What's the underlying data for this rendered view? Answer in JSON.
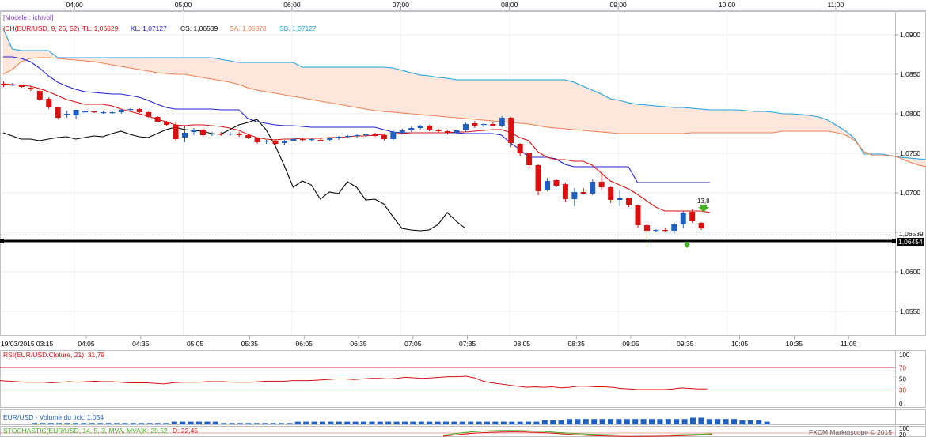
{
  "header_times": [
    "04:00",
    "05:00",
    "06:00",
    "07:00",
    "08:00",
    "09:00",
    "10:00",
    "11:00"
  ],
  "price_panel": {
    "model_label": "[Modele : ichivol]",
    "ich_label": "ICH(EUR/USD, 9, 26, 52) -",
    "tl_label": "TL: 1,06629",
    "kl_label": "KL: 1,07127",
    "cs_label": "CS: 1,06539",
    "sa_label": "SA: 1,06878",
    "sb_label": "SB: 1,07127",
    "price_ticks": [
      "1,0900",
      "1,0850",
      "1,0800",
      "1,0750",
      "1,0700",
      "1,0650",
      "1,0600",
      "1,0550"
    ],
    "current_price_label": "1,06539",
    "line_price_label": "1,06454",
    "fractal_label": "13,8"
  },
  "time_axis": {
    "date_label": "19/03/2015 03:15",
    "ticks": [
      "04:05",
      "04:35",
      "05:05",
      "05:35",
      "06:05",
      "06:35",
      "07:05",
      "07:35",
      "08:05",
      "08:35",
      "09:05",
      "09:35",
      "10:05",
      "10:35",
      "11:05"
    ]
  },
  "rsi_panel": {
    "label": "RSI(EUR/USD.Cloture, 21): 31,79",
    "ticks": [
      "100",
      "70",
      "50",
      "30",
      "0"
    ]
  },
  "volume_panel": {
    "label": "EUR/USD - Volume du tick: 1,054"
  },
  "stoch_panel": {
    "label": "STOCHASTIC(EUR/USD, 14, 5, 3, MVA, MVA) -",
    "k_label": "K: 29,52",
    "d_label": "D: 22,45",
    "ticks": [
      "100",
      "20"
    ]
  },
  "footer": {
    "brand": "FXCM Marketscope © 2015"
  },
  "colors": {
    "bull": "#1f5fbf",
    "bear": "#d81010",
    "tenkan": "#d81010",
    "kijun": "#2020d0",
    "senkou_a": "#f08050",
    "senkou_b": "#20a0e0",
    "chikou": "#000000",
    "cloud": "#fde6dc"
  },
  "chart_data": {
    "type": "candlestick",
    "symbol": "EUR/USD",
    "ylim": [
      1.052,
      1.093
    ],
    "candles": [
      {
        "t": "03:25",
        "o": 1.0838,
        "h": 1.0841,
        "l": 1.0834,
        "c": 1.0836
      },
      {
        "t": "03:30",
        "o": 1.0837,
        "h": 1.0839,
        "l": 1.0835,
        "c": 1.0837
      },
      {
        "t": "03:35",
        "o": 1.0836,
        "h": 1.0837,
        "l": 1.0833,
        "c": 1.0834
      },
      {
        "t": "03:40",
        "o": 1.0833,
        "h": 1.0835,
        "l": 1.0829,
        "c": 1.0831
      },
      {
        "t": "03:45",
        "o": 1.0829,
        "h": 1.0831,
        "l": 1.0816,
        "c": 1.0818
      },
      {
        "t": "03:50",
        "o": 1.0819,
        "h": 1.0821,
        "l": 1.0806,
        "c": 1.0808
      },
      {
        "t": "03:55",
        "o": 1.0808,
        "h": 1.0809,
        "l": 1.0793,
        "c": 1.0795
      },
      {
        "t": "04:00",
        "o": 1.0799,
        "h": 1.0804,
        "l": 1.0795,
        "c": 1.08
      },
      {
        "t": "04:05",
        "o": 1.0798,
        "h": 1.0804,
        "l": 1.0793,
        "c": 1.0805
      },
      {
        "t": "04:10",
        "o": 1.0802,
        "h": 1.0805,
        "l": 1.08,
        "c": 1.0803
      },
      {
        "t": "04:15",
        "o": 1.0803,
        "h": 1.0804,
        "l": 1.0801,
        "c": 1.0802
      },
      {
        "t": "04:20",
        "o": 1.0802,
        "h": 1.0803,
        "l": 1.08,
        "c": 1.0802
      },
      {
        "t": "04:25",
        "o": 1.0801,
        "h": 1.0804,
        "l": 1.08,
        "c": 1.0802
      },
      {
        "t": "04:30",
        "o": 1.0802,
        "h": 1.0806,
        "l": 1.08,
        "c": 1.0805
      },
      {
        "t": "04:35",
        "o": 1.0806,
        "h": 1.0807,
        "l": 1.0804,
        "c": 1.0806
      },
      {
        "t": "04:40",
        "o": 1.0806,
        "h": 1.0807,
        "l": 1.0801,
        "c": 1.0802
      },
      {
        "t": "04:45",
        "o": 1.0802,
        "h": 1.0803,
        "l": 1.0795,
        "c": 1.0796
      },
      {
        "t": "04:50",
        "o": 1.0796,
        "h": 1.0797,
        "l": 1.0789,
        "c": 1.079
      },
      {
        "t": "04:55",
        "o": 1.079,
        "h": 1.0791,
        "l": 1.0785,
        "c": 1.0786
      },
      {
        "t": "05:00",
        "o": 1.0786,
        "h": 1.079,
        "l": 1.0766,
        "c": 1.0768
      },
      {
        "t": "05:05",
        "o": 1.077,
        "h": 1.0784,
        "l": 1.0764,
        "c": 1.0776
      },
      {
        "t": "05:10",
        "o": 1.0777,
        "h": 1.0782,
        "l": 1.0773,
        "c": 1.078
      },
      {
        "t": "05:15",
        "o": 1.078,
        "h": 1.0782,
        "l": 1.0771,
        "c": 1.0773
      },
      {
        "t": "05:20",
        "o": 1.0774,
        "h": 1.0777,
        "l": 1.0772,
        "c": 1.0775
      },
      {
        "t": "05:25",
        "o": 1.0775,
        "h": 1.0777,
        "l": 1.0772,
        "c": 1.0774
      },
      {
        "t": "05:30",
        "o": 1.0774,
        "h": 1.0777,
        "l": 1.0772,
        "c": 1.0775
      },
      {
        "t": "05:35",
        "o": 1.0775,
        "h": 1.0777,
        "l": 1.0771,
        "c": 1.0773
      },
      {
        "t": "05:40",
        "o": 1.0773,
        "h": 1.0775,
        "l": 1.0768,
        "c": 1.0769
      },
      {
        "t": "05:45",
        "o": 1.0769,
        "h": 1.077,
        "l": 1.0762,
        "c": 1.0764
      },
      {
        "t": "05:50",
        "o": 1.0765,
        "h": 1.0767,
        "l": 1.0762,
        "c": 1.0766
      },
      {
        "t": "05:55",
        "o": 1.0766,
        "h": 1.0768,
        "l": 1.0761,
        "c": 1.0762
      },
      {
        "t": "06:00",
        "o": 1.0763,
        "h": 1.0767,
        "l": 1.0761,
        "c": 1.0766
      },
      {
        "t": "06:05",
        "o": 1.0766,
        "h": 1.0769,
        "l": 1.0765,
        "c": 1.0768
      },
      {
        "t": "06:10",
        "o": 1.0768,
        "h": 1.077,
        "l": 1.0765,
        "c": 1.0767
      },
      {
        "t": "06:15",
        "o": 1.0767,
        "h": 1.077,
        "l": 1.0765,
        "c": 1.0768
      },
      {
        "t": "06:20",
        "o": 1.0767,
        "h": 1.077,
        "l": 1.0765,
        "c": 1.0766
      },
      {
        "t": "06:25",
        "o": 1.0767,
        "h": 1.077,
        "l": 1.0765,
        "c": 1.0769
      },
      {
        "t": "06:30",
        "o": 1.0769,
        "h": 1.0772,
        "l": 1.0767,
        "c": 1.0771
      },
      {
        "t": "06:35",
        "o": 1.0771,
        "h": 1.0773,
        "l": 1.0769,
        "c": 1.0772
      },
      {
        "t": "06:40",
        "o": 1.0772,
        "h": 1.0774,
        "l": 1.077,
        "c": 1.0773
      },
      {
        "t": "06:45",
        "o": 1.0773,
        "h": 1.0775,
        "l": 1.0771,
        "c": 1.0774
      },
      {
        "t": "06:50",
        "o": 1.0774,
        "h": 1.0776,
        "l": 1.0771,
        "c": 1.0772
      },
      {
        "t": "06:55",
        "o": 1.0773,
        "h": 1.0775,
        "l": 1.0766,
        "c": 1.0768
      },
      {
        "t": "07:00",
        "o": 1.0768,
        "h": 1.0779,
        "l": 1.0766,
        "c": 1.0777
      },
      {
        "t": "07:05",
        "o": 1.0776,
        "h": 1.0781,
        "l": 1.0774,
        "c": 1.0779
      },
      {
        "t": "07:10",
        "o": 1.0779,
        "h": 1.0784,
        "l": 1.0777,
        "c": 1.0782
      },
      {
        "t": "07:15",
        "o": 1.0782,
        "h": 1.0786,
        "l": 1.078,
        "c": 1.0785
      },
      {
        "t": "07:20",
        "o": 1.0785,
        "h": 1.0786,
        "l": 1.0778,
        "c": 1.078
      },
      {
        "t": "07:25",
        "o": 1.078,
        "h": 1.0781,
        "l": 1.0776,
        "c": 1.0778
      },
      {
        "t": "07:30",
        "o": 1.0778,
        "h": 1.0779,
        "l": 1.0774,
        "c": 1.0776
      },
      {
        "t": "07:35",
        "o": 1.0776,
        "h": 1.078,
        "l": 1.0775,
        "c": 1.0779
      },
      {
        "t": "07:40",
        "o": 1.0779,
        "h": 1.0789,
        "l": 1.0777,
        "c": 1.0787
      },
      {
        "t": "07:45",
        "o": 1.0788,
        "h": 1.0791,
        "l": 1.0782,
        "c": 1.0785
      },
      {
        "t": "07:50",
        "o": 1.0786,
        "h": 1.0788,
        "l": 1.0783,
        "c": 1.0787
      },
      {
        "t": "07:55",
        "o": 1.0787,
        "h": 1.0789,
        "l": 1.0784,
        "c": 1.0785
      },
      {
        "t": "08:00",
        "o": 1.0785,
        "h": 1.0797,
        "l": 1.0783,
        "c": 1.0795
      },
      {
        "t": "08:05",
        "o": 1.0795,
        "h": 1.0796,
        "l": 1.0758,
        "c": 1.0763
      },
      {
        "t": "08:10",
        "o": 1.0762,
        "h": 1.0763,
        "l": 1.0746,
        "c": 1.075
      },
      {
        "t": "08:15",
        "o": 1.075,
        "h": 1.0751,
        "l": 1.0732,
        "c": 1.0735
      },
      {
        "t": "08:20",
        "o": 1.0735,
        "h": 1.0736,
        "l": 1.0697,
        "c": 1.0702
      },
      {
        "t": "08:25",
        "o": 1.0704,
        "h": 1.0719,
        "l": 1.0702,
        "c": 1.0715
      },
      {
        "t": "08:30",
        "o": 1.0716,
        "h": 1.0717,
        "l": 1.0707,
        "c": 1.0709
      },
      {
        "t": "08:35",
        "o": 1.0711,
        "h": 1.0713,
        "l": 1.0688,
        "c": 1.0692
      },
      {
        "t": "08:40",
        "o": 1.0692,
        "h": 1.0706,
        "l": 1.0683,
        "c": 1.0701
      },
      {
        "t": "08:45",
        "o": 1.0701,
        "h": 1.0706,
        "l": 1.0698,
        "c": 1.0699
      },
      {
        "t": "08:50",
        "o": 1.0699,
        "h": 1.0717,
        "l": 1.0697,
        "c": 1.0714
      },
      {
        "t": "08:55",
        "o": 1.0714,
        "h": 1.0726,
        "l": 1.0703,
        "c": 1.0707
      },
      {
        "t": "09:00",
        "o": 1.0707,
        "h": 1.0708,
        "l": 1.0687,
        "c": 1.0691
      },
      {
        "t": "09:05",
        "o": 1.0691,
        "h": 1.0704,
        "l": 1.0683,
        "c": 1.0693
      },
      {
        "t": "09:10",
        "o": 1.0693,
        "h": 1.0694,
        "l": 1.0682,
        "c": 1.0685
      },
      {
        "t": "09:15",
        "o": 1.0684,
        "h": 1.0685,
        "l": 1.0656,
        "c": 1.0659
      },
      {
        "t": "09:20",
        "o": 1.0659,
        "h": 1.066,
        "l": 1.0632,
        "c": 1.0652
      },
      {
        "t": "09:25",
        "o": 1.0652,
        "h": 1.0654,
        "l": 1.065,
        "c": 1.0653
      },
      {
        "t": "09:30",
        "o": 1.0653,
        "h": 1.0656,
        "l": 1.065,
        "c": 1.0652
      },
      {
        "t": "09:35",
        "o": 1.0652,
        "h": 1.0663,
        "l": 1.0648,
        "c": 1.066
      },
      {
        "t": "09:40",
        "o": 1.066,
        "h": 1.0677,
        "l": 1.0655,
        "c": 1.0675
      },
      {
        "t": "09:45",
        "o": 1.0676,
        "h": 1.068,
        "l": 1.0662,
        "c": 1.0664
      },
      {
        "t": "09:50",
        "o": 1.0662,
        "h": 1.0663,
        "l": 1.0653,
        "c": 1.0655
      }
    ],
    "tenkan": [
      1.0838,
      1.0837,
      1.0836,
      1.0835,
      1.0832,
      1.0828,
      1.0823,
      1.0818,
      1.0815,
      1.0812,
      1.0812,
      1.0812,
      1.081,
      1.0806,
      1.0803,
      1.08,
      1.0797,
      1.0793,
      1.079,
      1.0786,
      1.0785,
      1.0786,
      1.0786,
      1.0785,
      1.0784,
      1.0782,
      1.0779,
      1.0774,
      1.077,
      1.0768,
      1.0767,
      1.0768,
      1.0768,
      1.0769,
      1.0769,
      1.0769,
      1.077,
      1.077,
      1.0771,
      1.0772,
      1.0772,
      1.0773,
      1.0774,
      1.0775,
      1.0775,
      1.0776,
      1.0776,
      1.0776,
      1.0776,
      1.0776,
      1.0777,
      1.0777,
      1.0778,
      1.0779,
      1.078,
      1.078,
      1.0776,
      1.077,
      1.0766,
      1.0752,
      1.0745,
      1.0742,
      1.0742,
      1.074,
      1.074,
      1.0735,
      1.0725,
      1.0715,
      1.071,
      1.0705,
      1.0698,
      1.069,
      1.0682,
      1.0677,
      1.0677,
      1.0677,
      1.0677,
      1.0677,
      1.0675
    ],
    "kijun": [
      1.0872,
      1.0872,
      1.087,
      1.0866,
      1.0858,
      1.0848,
      1.084,
      1.0835,
      1.0831,
      1.0828,
      1.0827,
      1.0826,
      1.0825,
      1.0825,
      1.0823,
      1.0821,
      1.0817,
      1.0812,
      1.0808,
      1.0806,
      1.0806,
      1.0806,
      1.0806,
      1.0806,
      1.0805,
      1.0805,
      1.0805,
      1.0794,
      1.079,
      1.0788,
      1.0786,
      1.0785,
      1.0785,
      1.0784,
      1.0783,
      1.0783,
      1.0783,
      1.0783,
      1.0783,
      1.0783,
      1.0783,
      1.0783,
      1.078,
      1.0777,
      1.0776,
      1.0776,
      1.0776,
      1.0776,
      1.0776,
      1.0776,
      1.0776,
      1.0775,
      1.0775,
      1.0775,
      1.0775,
      1.0773,
      1.0763,
      1.0755,
      1.0745,
      1.0745,
      1.0745,
      1.0743,
      1.0736,
      1.0733,
      1.0733,
      1.0733,
      1.0733,
      1.0733,
      1.0733,
      1.0733,
      1.0713,
      1.0713,
      1.0713,
      1.0713,
      1.0713,
      1.0713,
      1.0713,
      1.0713,
      1.0713
    ],
    "chikou": [
      1.0776,
      1.0772,
      1.0768,
      1.0768,
      1.0766,
      1.0768,
      1.077,
      1.0771,
      1.0768,
      1.077,
      1.0772,
      1.0771,
      1.0775,
      1.0778,
      1.0774,
      1.0771,
      1.077,
      1.0775,
      1.078,
      1.0783,
      1.078,
      1.0779,
      1.0778,
      1.0775,
      1.0774,
      1.078,
      1.0786,
      1.0789,
      1.0793,
      1.078,
      1.076,
      1.0735,
      1.0707,
      1.0715,
      1.071,
      1.0692,
      1.0701,
      1.0699,
      1.0714,
      1.0707,
      1.0691,
      1.0692,
      1.0686,
      1.067,
      1.0655,
      1.0653,
      1.0652,
      1.0653,
      1.066,
      1.0675,
      1.0664,
      1.0655
    ],
    "senkou_a": [
      1.085,
      1.0856,
      1.0866,
      1.087,
      1.0871,
      1.0871,
      1.087,
      1.0869,
      1.0868,
      1.0867,
      1.0866,
      1.0864,
      1.0862,
      1.086,
      1.0858,
      1.0856,
      1.0854,
      1.0852,
      1.0851,
      1.085,
      1.085,
      1.0848,
      1.0846,
      1.0844,
      1.0842,
      1.084,
      1.0837,
      1.0833,
      1.083,
      1.0828,
      1.0826,
      1.0824,
      1.0822,
      1.082,
      1.0818,
      1.0816,
      1.0814,
      1.0812,
      1.081,
      1.0808,
      1.0806,
      1.0804,
      1.0803,
      1.0802,
      1.0801,
      1.08,
      1.0799,
      1.0798,
      1.0797,
      1.0796,
      1.0795,
      1.0794,
      1.0793,
      1.0792,
      1.0791,
      1.079,
      1.0789,
      1.0788,
      1.0787,
      1.0785,
      1.0783,
      1.0782,
      1.0781,
      1.078,
      1.0779,
      1.0778,
      1.0777,
      1.0776,
      1.0775,
      1.0775,
      1.0775,
      1.0775,
      1.0775,
      1.0775,
      1.0775,
      1.0775,
      1.0776,
      1.0776,
      1.0776,
      1.0776,
      1.0776,
      1.0776,
      1.0776,
      1.0776,
      1.0776,
      1.0776,
      1.0778,
      1.0778,
      1.0778,
      1.0778,
      1.0778,
      1.0778,
      1.0776,
      1.0773,
      1.0766,
      1.0752,
      1.0747,
      1.0747,
      1.0747,
      1.0744,
      1.0739,
      1.0735,
      1.0733,
      1.0733,
      1.0733,
      1.0733,
      1.0733,
      1.073,
      1.0725,
      1.0716,
      1.0705
    ],
    "senkou_b": [
      1.0908,
      1.0882,
      1.088,
      1.088,
      1.088,
      1.088,
      1.0871,
      1.0871,
      1.0871,
      1.0871,
      1.0871,
      1.0871,
      1.0871,
      1.0871,
      1.0871,
      1.0871,
      1.0871,
      1.0871,
      1.0871,
      1.0871,
      1.0871,
      1.0871,
      1.0871,
      1.0871,
      1.0869,
      1.0867,
      1.0865,
      1.0865,
      1.0865,
      1.0865,
      1.0865,
      1.0865,
      1.0865,
      1.0859,
      1.0859,
      1.0859,
      1.0859,
      1.0859,
      1.0859,
      1.0859,
      1.0859,
      1.0859,
      1.0859,
      1.0858,
      1.0855,
      1.0852,
      1.0849,
      1.0848,
      1.0846,
      1.0845,
      1.0843,
      1.0843,
      1.0843,
      1.0843,
      1.0843,
      1.0843,
      1.0843,
      1.0843,
      1.0843,
      1.0843,
      1.0843,
      1.0843,
      1.0843,
      1.084,
      1.0835,
      1.083,
      1.0825,
      1.0819,
      1.0817,
      1.0814,
      1.0812,
      1.0811,
      1.081,
      1.0809,
      1.0808,
      1.0808,
      1.0807,
      1.0806,
      1.0805,
      1.0805,
      1.0805,
      1.0805,
      1.0804,
      1.0803,
      1.0803,
      1.0802,
      1.08,
      1.08,
      1.0799,
      1.0798,
      1.0796,
      1.0792,
      1.0785,
      1.0778,
      1.0768,
      1.0749,
      1.0749,
      1.0749,
      1.0747,
      1.0745,
      1.0744,
      1.0743,
      1.0742,
      1.0741,
      1.074,
      1.0739,
      1.0738,
      1.0738,
      1.0737,
      1.0737,
      1.073,
      1.072
    ],
    "flat_line_price": 1.06454,
    "current_price": 1.06539,
    "rsi": [
      47,
      46,
      45,
      44,
      44,
      44,
      43,
      44,
      45,
      44,
      45,
      46,
      45,
      45,
      44,
      43,
      43,
      43,
      42,
      41,
      43,
      44,
      44,
      44,
      45,
      45,
      45,
      44,
      44,
      44,
      45,
      46,
      46,
      46,
      47,
      47,
      47,
      48,
      49,
      50,
      50,
      49,
      50,
      51,
      51,
      50,
      51,
      53,
      52,
      51,
      52,
      53,
      54,
      54,
      55,
      52,
      46,
      43,
      41,
      39,
      37,
      35,
      36,
      35,
      36,
      34,
      35,
      37,
      37,
      36,
      36,
      35,
      33,
      32,
      31,
      31,
      31,
      31,
      32,
      34,
      33,
      32,
      32
    ],
    "volume": [
      1,
      1,
      1,
      1,
      1,
      1,
      1,
      1,
      1,
      1,
      1,
      1,
      1,
      1,
      1,
      1,
      1,
      2,
      2,
      2,
      2,
      2,
      2,
      1,
      1,
      1,
      1,
      1,
      1,
      1,
      1,
      1,
      2,
      2,
      2,
      2,
      2,
      2,
      2,
      2,
      2,
      2,
      2,
      2,
      2,
      2,
      2,
      2,
      2,
      2,
      2,
      2,
      2,
      2,
      2,
      2,
      2,
      2,
      2,
      2,
      2,
      2,
      3,
      3,
      3,
      4,
      4,
      4,
      4,
      4,
      4,
      4,
      4,
      4,
      4,
      4,
      4,
      4,
      4,
      4,
      5,
      5,
      4,
      4,
      4,
      4,
      3,
      3,
      3,
      2
    ],
    "stoch_k": 29.52,
    "stoch_d": 22.45
  }
}
